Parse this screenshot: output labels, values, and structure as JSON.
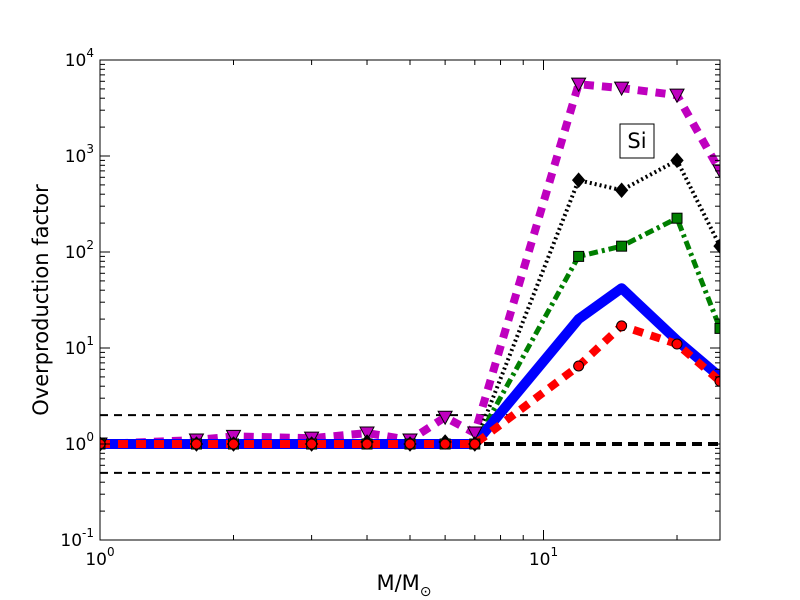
{
  "chart_data": {
    "type": "line",
    "xlabel": "M/M",
    "xlabel_symbol": "⊙",
    "ylabel": "Overproduction factor",
    "x_scale": "log",
    "y_scale": "log",
    "xlim": [
      1,
      25
    ],
    "ylim": [
      0.1,
      10000
    ],
    "x_ticks": [
      {
        "value": 1,
        "base": "10",
        "exp": "0"
      },
      {
        "value": 10,
        "base": "10",
        "exp": "1"
      }
    ],
    "y_ticks": [
      {
        "value": 0.1,
        "base": "10",
        "exp": "-1"
      },
      {
        "value": 1,
        "base": "10",
        "exp": "0"
      },
      {
        "value": 10,
        "base": "10",
        "exp": "1"
      },
      {
        "value": 100,
        "base": "10",
        "exp": "2"
      },
      {
        "value": 1000,
        "base": "10",
        "exp": "3"
      },
      {
        "value": 10000,
        "base": "10",
        "exp": "4"
      }
    ],
    "annotation": "Si",
    "reference_lines": [
      {
        "y": 2,
        "style": "dashed",
        "weight": "thin"
      },
      {
        "y": 1,
        "style": "dashed",
        "weight": "thick"
      },
      {
        "y": 0.5,
        "style": "dashed",
        "weight": "thin"
      }
    ],
    "series": [
      {
        "color": "#bf00bf",
        "marker": "triangle-down",
        "linestyle": "dotted",
        "x": [
          1,
          1.65,
          2,
          3,
          4,
          5,
          6,
          7,
          12,
          15,
          20,
          25
        ],
        "y": [
          1.0,
          1.1,
          1.2,
          1.15,
          1.3,
          1.1,
          1.9,
          1.3,
          5600,
          5100,
          4300,
          700
        ]
      },
      {
        "color": "#000000",
        "marker": "diamond",
        "linestyle": "dotted",
        "x": [
          1,
          1.65,
          2,
          3,
          4,
          5,
          6,
          7,
          12,
          15,
          20,
          25
        ],
        "y": [
          1.0,
          1.0,
          1.0,
          1.0,
          1.05,
          1.0,
          1.05,
          1.0,
          560,
          440,
          900,
          115
        ]
      },
      {
        "color": "#007f00",
        "marker": "square",
        "linestyle": "dashdot",
        "x": [
          1,
          1.65,
          2,
          3,
          4,
          5,
          6,
          7,
          12,
          15,
          20,
          25
        ],
        "y": [
          1.0,
          1.0,
          1.0,
          1.0,
          1.0,
          1.0,
          1.0,
          1.0,
          90,
          115,
          225,
          16
        ]
      },
      {
        "color": "#0000ff",
        "marker": "none",
        "linestyle": "solid",
        "x": [
          1,
          1.65,
          2,
          3,
          4,
          5,
          6,
          7,
          12,
          15,
          20,
          25
        ],
        "y": [
          1.0,
          1.0,
          1.0,
          1.0,
          1.0,
          1.0,
          1.0,
          1.0,
          20,
          42,
          12,
          5
        ]
      },
      {
        "color": "#ff0000",
        "marker": "circle",
        "linestyle": "dotted",
        "x": [
          1,
          1.65,
          2,
          3,
          4,
          5,
          6,
          7,
          12,
          15,
          20,
          25
        ],
        "y": [
          1.0,
          1.0,
          1.0,
          1.0,
          1.0,
          1.0,
          1.0,
          1.0,
          6.5,
          17,
          11,
          4.5
        ]
      }
    ]
  }
}
